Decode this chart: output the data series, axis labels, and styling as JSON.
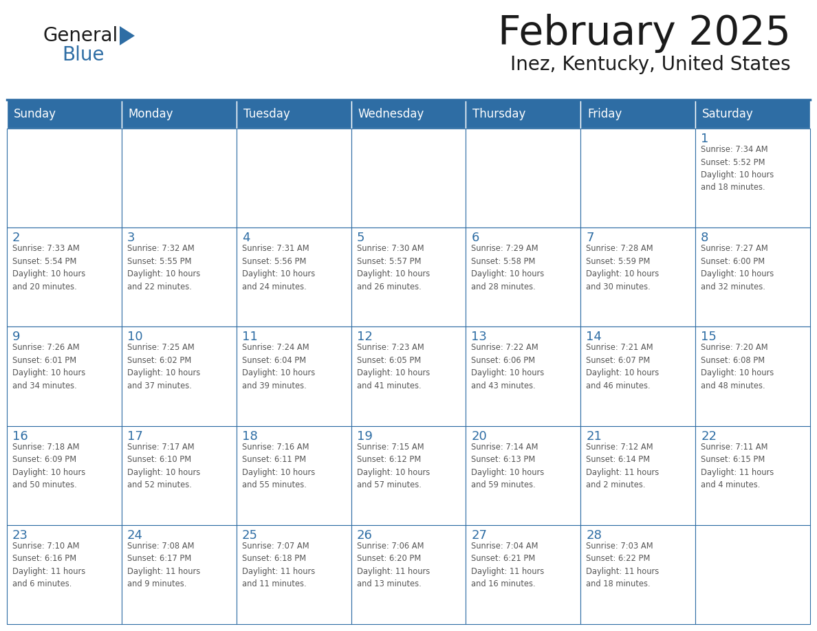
{
  "title": "February 2025",
  "subtitle": "Inez, Kentucky, United States",
  "header_bg": "#2E6DA4",
  "header_text_color": "#FFFFFF",
  "cell_bg": "#FFFFFF",
  "border_color": "#2E6DA4",
  "text_color": "#555555",
  "day_number_color": "#2E6DA4",
  "day_headers": [
    "Sunday",
    "Monday",
    "Tuesday",
    "Wednesday",
    "Thursday",
    "Friday",
    "Saturday"
  ],
  "weeks": [
    [
      {
        "day": "",
        "info": ""
      },
      {
        "day": "",
        "info": ""
      },
      {
        "day": "",
        "info": ""
      },
      {
        "day": "",
        "info": ""
      },
      {
        "day": "",
        "info": ""
      },
      {
        "day": "",
        "info": ""
      },
      {
        "day": "1",
        "info": "Sunrise: 7:34 AM\nSunset: 5:52 PM\nDaylight: 10 hours\nand 18 minutes."
      }
    ],
    [
      {
        "day": "2",
        "info": "Sunrise: 7:33 AM\nSunset: 5:54 PM\nDaylight: 10 hours\nand 20 minutes."
      },
      {
        "day": "3",
        "info": "Sunrise: 7:32 AM\nSunset: 5:55 PM\nDaylight: 10 hours\nand 22 minutes."
      },
      {
        "day": "4",
        "info": "Sunrise: 7:31 AM\nSunset: 5:56 PM\nDaylight: 10 hours\nand 24 minutes."
      },
      {
        "day": "5",
        "info": "Sunrise: 7:30 AM\nSunset: 5:57 PM\nDaylight: 10 hours\nand 26 minutes."
      },
      {
        "day": "6",
        "info": "Sunrise: 7:29 AM\nSunset: 5:58 PM\nDaylight: 10 hours\nand 28 minutes."
      },
      {
        "day": "7",
        "info": "Sunrise: 7:28 AM\nSunset: 5:59 PM\nDaylight: 10 hours\nand 30 minutes."
      },
      {
        "day": "8",
        "info": "Sunrise: 7:27 AM\nSunset: 6:00 PM\nDaylight: 10 hours\nand 32 minutes."
      }
    ],
    [
      {
        "day": "9",
        "info": "Sunrise: 7:26 AM\nSunset: 6:01 PM\nDaylight: 10 hours\nand 34 minutes."
      },
      {
        "day": "10",
        "info": "Sunrise: 7:25 AM\nSunset: 6:02 PM\nDaylight: 10 hours\nand 37 minutes."
      },
      {
        "day": "11",
        "info": "Sunrise: 7:24 AM\nSunset: 6:04 PM\nDaylight: 10 hours\nand 39 minutes."
      },
      {
        "day": "12",
        "info": "Sunrise: 7:23 AM\nSunset: 6:05 PM\nDaylight: 10 hours\nand 41 minutes."
      },
      {
        "day": "13",
        "info": "Sunrise: 7:22 AM\nSunset: 6:06 PM\nDaylight: 10 hours\nand 43 minutes."
      },
      {
        "day": "14",
        "info": "Sunrise: 7:21 AM\nSunset: 6:07 PM\nDaylight: 10 hours\nand 46 minutes."
      },
      {
        "day": "15",
        "info": "Sunrise: 7:20 AM\nSunset: 6:08 PM\nDaylight: 10 hours\nand 48 minutes."
      }
    ],
    [
      {
        "day": "16",
        "info": "Sunrise: 7:18 AM\nSunset: 6:09 PM\nDaylight: 10 hours\nand 50 minutes."
      },
      {
        "day": "17",
        "info": "Sunrise: 7:17 AM\nSunset: 6:10 PM\nDaylight: 10 hours\nand 52 minutes."
      },
      {
        "day": "18",
        "info": "Sunrise: 7:16 AM\nSunset: 6:11 PM\nDaylight: 10 hours\nand 55 minutes."
      },
      {
        "day": "19",
        "info": "Sunrise: 7:15 AM\nSunset: 6:12 PM\nDaylight: 10 hours\nand 57 minutes."
      },
      {
        "day": "20",
        "info": "Sunrise: 7:14 AM\nSunset: 6:13 PM\nDaylight: 10 hours\nand 59 minutes."
      },
      {
        "day": "21",
        "info": "Sunrise: 7:12 AM\nSunset: 6:14 PM\nDaylight: 11 hours\nand 2 minutes."
      },
      {
        "day": "22",
        "info": "Sunrise: 7:11 AM\nSunset: 6:15 PM\nDaylight: 11 hours\nand 4 minutes."
      }
    ],
    [
      {
        "day": "23",
        "info": "Sunrise: 7:10 AM\nSunset: 6:16 PM\nDaylight: 11 hours\nand 6 minutes."
      },
      {
        "day": "24",
        "info": "Sunrise: 7:08 AM\nSunset: 6:17 PM\nDaylight: 11 hours\nand 9 minutes."
      },
      {
        "day": "25",
        "info": "Sunrise: 7:07 AM\nSunset: 6:18 PM\nDaylight: 11 hours\nand 11 minutes."
      },
      {
        "day": "26",
        "info": "Sunrise: 7:06 AM\nSunset: 6:20 PM\nDaylight: 11 hours\nand 13 minutes."
      },
      {
        "day": "27",
        "info": "Sunrise: 7:04 AM\nSunset: 6:21 PM\nDaylight: 11 hours\nand 16 minutes."
      },
      {
        "day": "28",
        "info": "Sunrise: 7:03 AM\nSunset: 6:22 PM\nDaylight: 11 hours\nand 18 minutes."
      },
      {
        "day": "",
        "info": ""
      }
    ]
  ],
  "logo_text1": "General",
  "logo_text2": "Blue",
  "logo_color1": "#1a1a1a",
  "logo_color2": "#2E6DA4",
  "logo_triangle_color": "#2E6DA4",
  "fig_width": 11.88,
  "fig_height": 9.18,
  "fig_dpi": 100
}
